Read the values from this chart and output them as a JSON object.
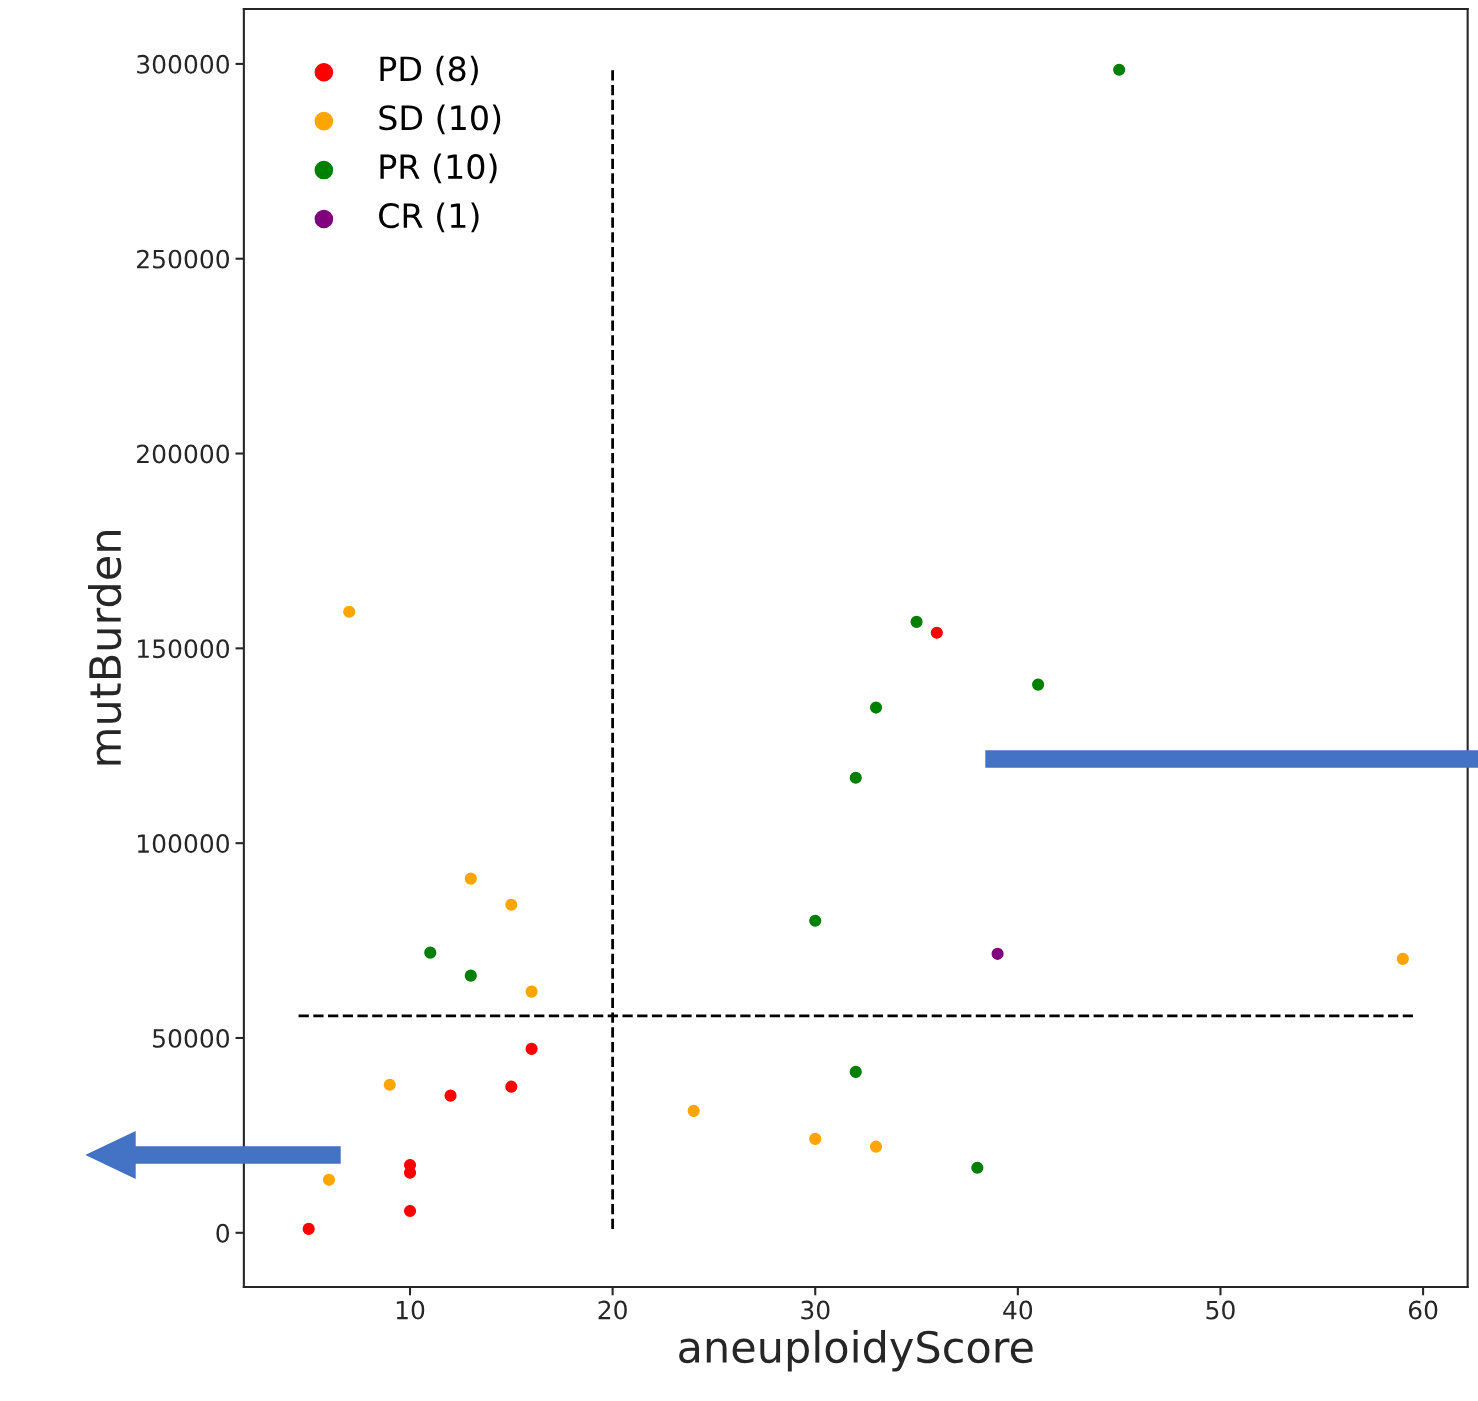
{
  "chart_data": {
    "type": "scatter",
    "xlabel": "aneuploidyScore",
    "ylabel": "mutBurden",
    "xlim": [
      1.8,
      62.2
    ],
    "ylim": [
      -13900,
      314100
    ],
    "xticks": [
      10,
      20,
      30,
      40,
      50,
      60
    ],
    "yticks": [
      0,
      50000,
      100000,
      150000,
      200000,
      250000,
      300000
    ],
    "grid": false,
    "legend": "top left",
    "marker": "circle",
    "series": [
      {
        "name": "PD (8)",
        "color": "#ff0000",
        "x": [
          5,
          10,
          10,
          10,
          12,
          15,
          16,
          36
        ],
        "values": [
          1000,
          5600,
          15400,
          17400,
          35200,
          37500,
          47200,
          154000
        ]
      },
      {
        "name": "SD (10)",
        "color": "#ffa500",
        "x": [
          7,
          6,
          9,
          13,
          15,
          16,
          24,
          30,
          33,
          59
        ],
        "values": [
          159400,
          13600,
          38000,
          90900,
          84200,
          61900,
          31300,
          24100,
          22100,
          70300
        ]
      },
      {
        "name": "PR (10)",
        "color": "#008000",
        "x": [
          45,
          35,
          41,
          33,
          32,
          30,
          11,
          13,
          32,
          38
        ],
        "values": [
          298500,
          156800,
          140700,
          134800,
          116800,
          80100,
          71900,
          66000,
          41300,
          16700
        ]
      },
      {
        "name": "CR (1)",
        "color": "#800080",
        "x": [
          39
        ],
        "values": [
          71600
        ]
      }
    ],
    "ref_lines": [
      {
        "axis": "x",
        "value": 20,
        "color": "#000000",
        "line_style": "dashed"
      },
      {
        "axis": "y",
        "value": 55700,
        "color": "#000000",
        "line_style": "dashed"
      }
    ]
  }
}
